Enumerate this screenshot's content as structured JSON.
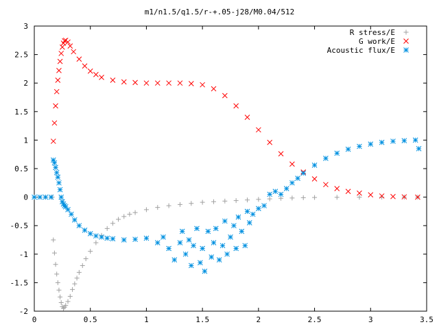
{
  "chart_data": {
    "type": "scatter",
    "title": "m1/n1.5/q1.5/r-+.05-j28/M0.04/512",
    "xlabel": "",
    "ylabel": "",
    "xlim": [
      0,
      3.5
    ],
    "ylim": [
      -2,
      3
    ],
    "x_ticks": [
      0,
      0.5,
      1,
      1.5,
      2,
      2.5,
      3,
      3.5
    ],
    "x_tick_labels": [
      "0",
      "0.5",
      "1",
      "1.5",
      "2",
      "2.5",
      "3",
      "3.5"
    ],
    "y_ticks": [
      -2,
      -1.5,
      -1,
      -0.5,
      0,
      0.5,
      1,
      1.5,
      2,
      2.5,
      3
    ],
    "y_tick_labels": [
      "-2",
      "-1.5",
      "-1",
      "-0.5",
      "0",
      "0.5",
      "1",
      "1.5",
      "2",
      "2.5",
      "3"
    ],
    "grid": false,
    "legend_position": "top-right",
    "series": [
      {
        "name": "R stress/E",
        "marker": "plus",
        "color": "#a0a0a0",
        "x": [
          0.0,
          0.1,
          0.16,
          0.17,
          0.18,
          0.19,
          0.2,
          0.21,
          0.22,
          0.23,
          0.24,
          0.25,
          0.26,
          0.27,
          0.28,
          0.3,
          0.32,
          0.34,
          0.36,
          0.38,
          0.4,
          0.43,
          0.46,
          0.5,
          0.55,
          0.6,
          0.65,
          0.7,
          0.75,
          0.8,
          0.85,
          0.9,
          1.0,
          1.1,
          1.2,
          1.3,
          1.4,
          1.5,
          1.6,
          1.7,
          1.8,
          1.9,
          2.0,
          2.1,
          2.2,
          2.3,
          2.4,
          2.5,
          2.7,
          2.9,
          3.1,
          3.3,
          3.42
        ],
        "y": [
          0.0,
          0.0,
          0.0,
          -0.75,
          -0.98,
          -1.18,
          -1.35,
          -1.5,
          -1.63,
          -1.75,
          -1.85,
          -1.92,
          -1.95,
          -1.93,
          -1.9,
          -1.83,
          -1.74,
          -1.62,
          -1.52,
          -1.42,
          -1.32,
          -1.2,
          -1.08,
          -0.95,
          -0.8,
          -0.67,
          -0.55,
          -0.46,
          -0.39,
          -0.34,
          -0.3,
          -0.27,
          -0.22,
          -0.18,
          -0.15,
          -0.13,
          -0.11,
          -0.09,
          -0.08,
          -0.07,
          -0.06,
          -0.05,
          -0.04,
          -0.03,
          -0.02,
          -0.015,
          -0.01,
          -0.007,
          -0.004,
          -0.002,
          -0.001,
          0.0,
          0.0
        ]
      },
      {
        "name": "G work/E",
        "marker": "cross",
        "color": "#ff0000",
        "x": [
          0.17,
          0.18,
          0.19,
          0.2,
          0.21,
          0.22,
          0.23,
          0.24,
          0.25,
          0.26,
          0.27,
          0.28,
          0.3,
          0.32,
          0.35,
          0.4,
          0.45,
          0.5,
          0.55,
          0.6,
          0.7,
          0.8,
          0.9,
          1.0,
          1.1,
          1.2,
          1.3,
          1.4,
          1.5,
          1.6,
          1.7,
          1.8,
          1.9,
          2.0,
          2.1,
          2.2,
          2.3,
          2.4,
          2.5,
          2.6,
          2.7,
          2.8,
          2.9,
          3.0,
          3.1,
          3.2,
          3.3,
          3.42
        ],
        "y": [
          0.98,
          1.3,
          1.6,
          1.85,
          2.05,
          2.22,
          2.38,
          2.52,
          2.63,
          2.7,
          2.74,
          2.75,
          2.72,
          2.65,
          2.55,
          2.42,
          2.3,
          2.21,
          2.15,
          2.1,
          2.05,
          2.02,
          2.01,
          2.0,
          2.0,
          2.0,
          2.0,
          1.99,
          1.97,
          1.9,
          1.78,
          1.6,
          1.4,
          1.18,
          0.96,
          0.76,
          0.58,
          0.44,
          0.32,
          0.22,
          0.15,
          0.1,
          0.07,
          0.04,
          0.02,
          0.01,
          0.005,
          0.0
        ]
      },
      {
        "name": "Acoustic flux/E",
        "marker": "star",
        "color": "#0090e0",
        "x": [
          0.0,
          0.05,
          0.1,
          0.15,
          0.17,
          0.18,
          0.19,
          0.2,
          0.21,
          0.22,
          0.23,
          0.24,
          0.25,
          0.26,
          0.27,
          0.28,
          0.3,
          0.33,
          0.36,
          0.4,
          0.45,
          0.5,
          0.55,
          0.6,
          0.65,
          0.7,
          0.8,
          0.9,
          1.0,
          1.1,
          1.15,
          1.2,
          1.25,
          1.3,
          1.32,
          1.35,
          1.38,
          1.4,
          1.42,
          1.45,
          1.48,
          1.5,
          1.52,
          1.55,
          1.58,
          1.6,
          1.62,
          1.65,
          1.68,
          1.7,
          1.72,
          1.75,
          1.78,
          1.8,
          1.82,
          1.85,
          1.88,
          1.9,
          1.92,
          1.95,
          2.0,
          2.05,
          2.1,
          2.15,
          2.2,
          2.25,
          2.3,
          2.35,
          2.4,
          2.5,
          2.6,
          2.7,
          2.8,
          2.9,
          3.0,
          3.1,
          3.2,
          3.3,
          3.4,
          3.43
        ],
        "y": [
          0.0,
          0.0,
          0.0,
          0.0,
          0.65,
          0.6,
          0.52,
          0.43,
          0.35,
          0.25,
          0.13,
          0.0,
          -0.08,
          -0.12,
          -0.15,
          -0.17,
          -0.22,
          -0.3,
          -0.4,
          -0.5,
          -0.58,
          -0.64,
          -0.68,
          -0.7,
          -0.72,
          -0.73,
          -0.75,
          -0.74,
          -0.72,
          -0.8,
          -0.7,
          -0.9,
          -1.1,
          -0.8,
          -0.6,
          -1.0,
          -0.75,
          -1.2,
          -0.85,
          -0.55,
          -1.15,
          -0.9,
          -1.3,
          -0.6,
          -1.05,
          -0.8,
          -0.55,
          -1.1,
          -0.85,
          -0.42,
          -1.0,
          -0.7,
          -0.5,
          -0.9,
          -0.35,
          -0.6,
          -0.85,
          -0.25,
          -0.45,
          -0.3,
          -0.2,
          -0.15,
          0.05,
          0.1,
          0.05,
          0.15,
          0.25,
          0.33,
          0.42,
          0.56,
          0.68,
          0.77,
          0.84,
          0.89,
          0.93,
          0.96,
          0.98,
          0.99,
          1.0,
          0.85
        ]
      }
    ]
  }
}
